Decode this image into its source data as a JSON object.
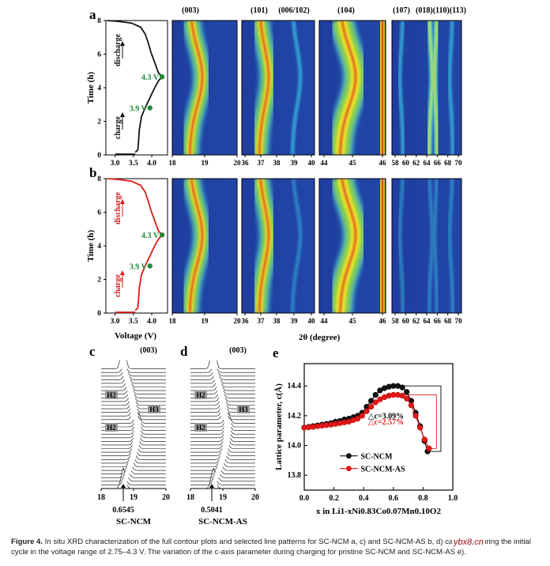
{
  "panels": {
    "a": "a",
    "b": "b",
    "c": "c",
    "d": "d",
    "e": "e"
  },
  "voltage_axis": {
    "ylabel": "Time (h)",
    "xlabel": "Voltage (V)",
    "yticks": [
      "0",
      "2",
      "4",
      "6",
      "8"
    ],
    "xticks": [
      "3.0",
      "3.5",
      "4.0"
    ],
    "discharge": "discharge",
    "charge": "charge",
    "v_high": "4.3 V",
    "v_mid": "3.9 V"
  },
  "contour": {
    "peak_labels": [
      "(003)",
      "(101)",
      "(006/102)",
      "(104)",
      "(107)",
      "(018)(110)(113)"
    ],
    "xlabel": "2θ (degree)",
    "ticks_p1": [
      "18",
      "19",
      "20"
    ],
    "ticks_p2": [
      "36",
      "37",
      "38",
      "39",
      "40"
    ],
    "ticks_p3": [
      "44",
      "45",
      "46"
    ],
    "ticks_p4": [
      "58",
      "60",
      "62",
      "64",
      "66",
      "68",
      "70"
    ]
  },
  "lines": {
    "peak": "(003)",
    "h2": "H2",
    "h3": "H3",
    "ticks": [
      "18",
      "19",
      "20"
    ],
    "c_value": "0.6545",
    "d_value": "0.5041",
    "c_name": "SC-NCM",
    "d_name": "SC-NCM-AS"
  },
  "chart_data": {
    "type": "scatter",
    "title": "",
    "xlabel": "x in Li1-xNi0.83Co0.07Mn0.10O2",
    "ylabel": "Lattice parameter, c(Å)",
    "xlim": [
      0.0,
      1.0
    ],
    "ylim": [
      13.7,
      14.55
    ],
    "xticks": [
      "0.0",
      "0.2",
      "0.4",
      "0.6",
      "0.8",
      "1.0"
    ],
    "yticks": [
      "13.8",
      "14.0",
      "14.2",
      "14.4"
    ],
    "series": [
      {
        "name": "SC-NCM",
        "color": "#111111",
        "x": [
          0.0,
          0.03,
          0.06,
          0.09,
          0.12,
          0.15,
          0.18,
          0.21,
          0.24,
          0.27,
          0.3,
          0.33,
          0.36,
          0.39,
          0.42,
          0.45,
          0.48,
          0.51,
          0.54,
          0.57,
          0.6,
          0.63,
          0.66,
          0.69,
          0.72,
          0.75,
          0.78,
          0.81,
          0.83
        ],
        "y": [
          14.12,
          14.125,
          14.13,
          14.135,
          14.14,
          14.145,
          14.15,
          14.16,
          14.165,
          14.175,
          14.18,
          14.19,
          14.2,
          14.22,
          14.26,
          14.3,
          14.34,
          14.37,
          14.385,
          14.395,
          14.4,
          14.4,
          14.39,
          14.36,
          14.3,
          14.22,
          14.13,
          14.03,
          13.96
        ]
      },
      {
        "name": "SC-NCM-AS",
        "color": "#e01818",
        "x": [
          0.0,
          0.03,
          0.06,
          0.09,
          0.12,
          0.15,
          0.18,
          0.21,
          0.24,
          0.27,
          0.3,
          0.33,
          0.36,
          0.39,
          0.42,
          0.45,
          0.48,
          0.51,
          0.54,
          0.57,
          0.6,
          0.63,
          0.66,
          0.69,
          0.72,
          0.75,
          0.78,
          0.81,
          0.84
        ],
        "y": [
          14.12,
          14.122,
          14.125,
          14.13,
          14.133,
          14.137,
          14.14,
          14.145,
          14.15,
          14.155,
          14.16,
          14.17,
          14.18,
          14.2,
          14.23,
          14.26,
          14.29,
          14.31,
          14.325,
          14.335,
          14.34,
          14.34,
          14.335,
          14.315,
          14.27,
          14.2,
          14.12,
          14.04,
          13.98
        ]
      }
    ],
    "annotations": [
      "△c=3.09%",
      "△c=2.57%"
    ]
  },
  "caption": {
    "label": "Figure 4.",
    "text": " In situ XRD characterization of the full contour plots and selected line patterns for SC-NCM a, c) and SC-NCM-AS b, d) cathodes during the initial cycle in the voltage range of 2.75–4.3 V. The variation of the c-axis parameter during charging for pristine SC-NCM and SC-NCM-AS e)."
  },
  "watermark": "ybx8.cn",
  "colors": {
    "green": "#1f8a3a",
    "red": "#e01818",
    "black": "#111111"
  }
}
